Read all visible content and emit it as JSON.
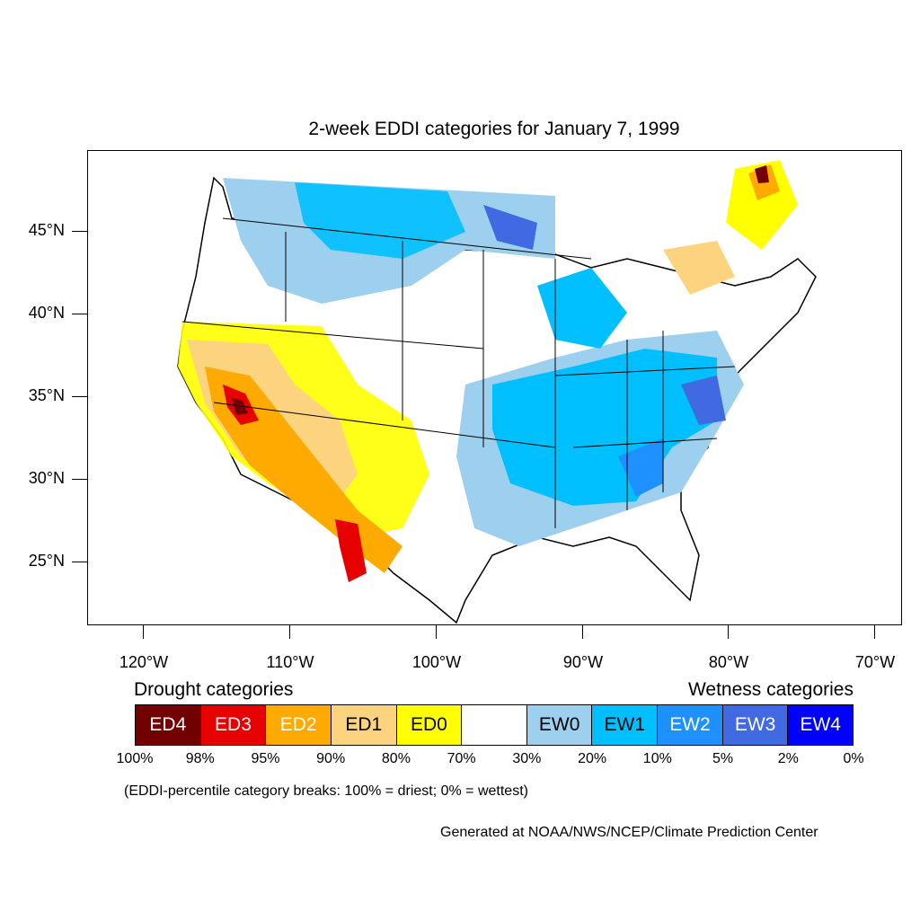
{
  "map": {
    "title": "2-week EDDI categories for January 7, 1999",
    "lat_labels": [
      "45°N",
      "40°N",
      "35°N",
      "30°N",
      "25°N"
    ],
    "lon_labels": [
      "120°W",
      "110°W",
      "100°W",
      "90°W",
      "80°W",
      "70°W"
    ],
    "region": "Contiguous United States",
    "colors": {
      "ED4": "#730000",
      "ED3": "#e60000",
      "ED2": "#ffaa00",
      "ED1": "#fcd37f",
      "ED0": "#ffff00",
      "neutral": "#ffffff",
      "EW0": "#9dd0ee",
      "EW1": "#00bfff",
      "EW2": "#1e90ff",
      "EW3": "#4169e1",
      "EW4": "#0000ff"
    }
  },
  "legend": {
    "drought_heading": "Drought categories",
    "wetness_heading": "Wetness categories",
    "categories": [
      {
        "label": "ED4",
        "color": "#730000",
        "text_color": "#ffffff"
      },
      {
        "label": "ED3",
        "color": "#e60000",
        "text_color": "#ffffff"
      },
      {
        "label": "ED2",
        "color": "#ffaa00",
        "text_color": "#ffffff"
      },
      {
        "label": "ED1",
        "color": "#fcd37f",
        "text_color": "#000000"
      },
      {
        "label": "ED0",
        "color": "#ffff00",
        "text_color": "#000000"
      },
      {
        "label": "",
        "color": "#ffffff",
        "text_color": "#000000"
      },
      {
        "label": "EW0",
        "color": "#9dd0ee",
        "text_color": "#000000"
      },
      {
        "label": "EW1",
        "color": "#00bfff",
        "text_color": "#000000"
      },
      {
        "label": "EW2",
        "color": "#1e90ff",
        "text_color": "#ffffff"
      },
      {
        "label": "EW3",
        "color": "#4169e1",
        "text_color": "#ffffff"
      },
      {
        "label": "EW4",
        "color": "#0000ff",
        "text_color": "#ffffff"
      }
    ],
    "percentiles": [
      "100%",
      "98%",
      "95%",
      "90%",
      "80%",
      "70%",
      "30%",
      "20%",
      "10%",
      "5%",
      "2%",
      "0%"
    ]
  },
  "note": "(EDDI-percentile category breaks: 100% = driest; 0% = wettest)",
  "credit": "Generated at NOAA/NWS/NCEP/Climate Prediction Center"
}
